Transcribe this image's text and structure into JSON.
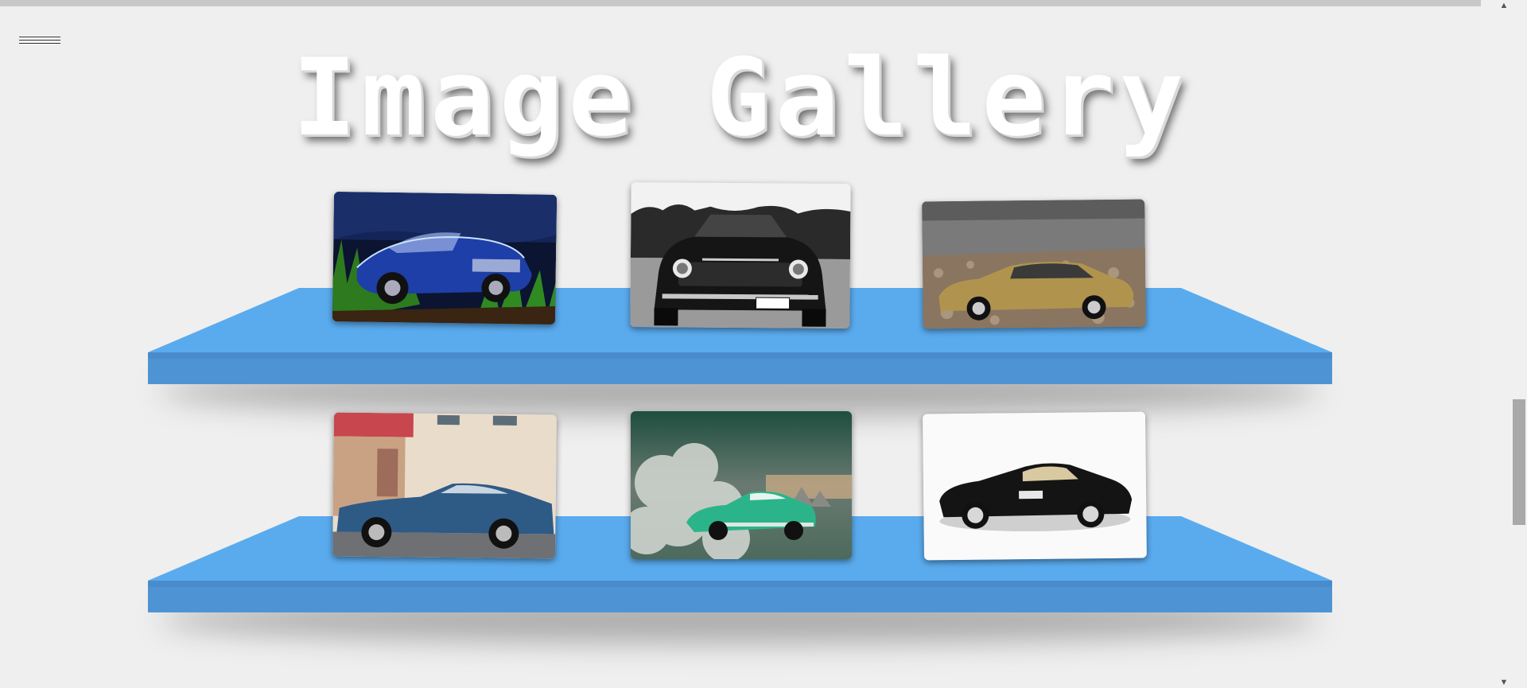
{
  "header": {
    "title": "Image Gallery"
  },
  "menu": {
    "icon": "hamburger-menu-icon"
  },
  "colors": {
    "page_bg": "#efefef",
    "shelf_top": "#5aabee",
    "shelf_front": "#4e94d5",
    "title": "#ffffff"
  },
  "gallery": {
    "shelves": [
      {
        "images": [
          "blue-muscle-car-photo",
          "black-convertible-photo",
          "gold-coupe-photo"
        ]
      },
      {
        "images": [
          "blue-fastback-photo",
          "green-cadillac-photo",
          "black-gullwing-photo"
        ]
      }
    ]
  },
  "scrollbar": {
    "up_icon": "▲",
    "down_icon": "▼"
  }
}
